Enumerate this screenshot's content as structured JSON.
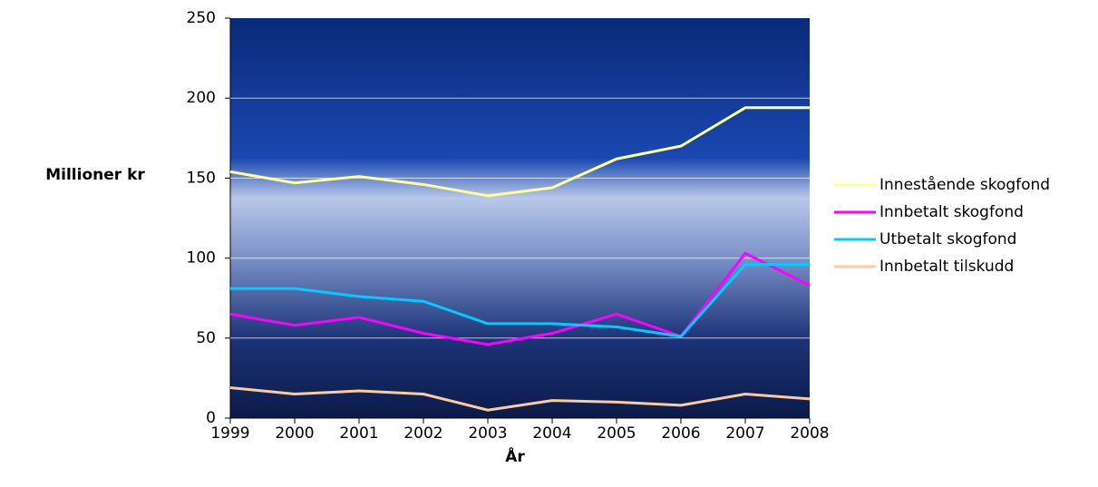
{
  "chart_data": {
    "type": "line",
    "y_label": "Millioner kr",
    "x_label": "År",
    "x": [
      1999,
      2000,
      2001,
      2002,
      2003,
      2004,
      2005,
      2006,
      2007,
      2008
    ],
    "xlim": [
      1999,
      2008
    ],
    "xticks": [
      1999,
      2000,
      2001,
      2002,
      2003,
      2004,
      2005,
      2006,
      2007,
      2008
    ],
    "ylim": [
      0,
      250
    ],
    "yticks": [
      0,
      50,
      100,
      150,
      200,
      250
    ],
    "grid": true,
    "legend": "right",
    "series": [
      {
        "name": "Innestående skogfond",
        "color": "#ffff99",
        "values": [
          154,
          147,
          151,
          146,
          139,
          144,
          162,
          170,
          194,
          194
        ]
      },
      {
        "name": "Innbetalt skogfond",
        "color": "#ff00ff",
        "values": [
          65,
          58,
          63,
          53,
          46,
          53,
          65,
          51,
          103,
          83
        ]
      },
      {
        "name": "Utbetalt skogfond",
        "color": "#00ccff",
        "values": [
          81,
          81,
          76,
          73,
          59,
          59,
          57,
          51,
          96,
          96
        ]
      },
      {
        "name": "Innbetalt tilskudd",
        "color": "#ffcc99",
        "values": [
          19,
          15,
          17,
          15,
          5,
          11,
          10,
          8,
          15,
          12
        ]
      }
    ]
  }
}
